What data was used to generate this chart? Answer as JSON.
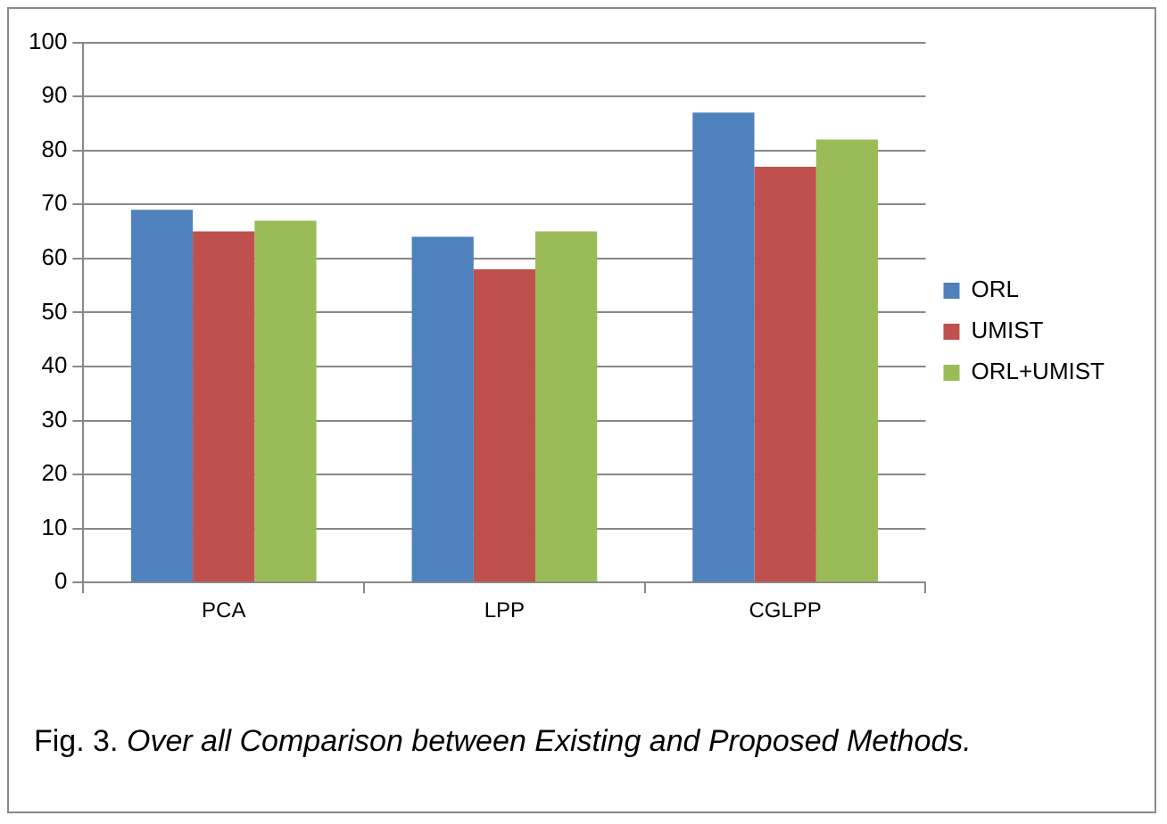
{
  "chart_data": {
    "type": "bar",
    "categories": [
      "PCA",
      "LPP",
      "CGLPP"
    ],
    "series": [
      {
        "name": "ORL",
        "color": "#4f81bd",
        "values": [
          69,
          64,
          87
        ]
      },
      {
        "name": "UMIST",
        "color": "#c0504d",
        "values": [
          65,
          58,
          77
        ]
      },
      {
        "name": "ORL+UMIST",
        "color": "#9bbb59",
        "values": [
          67,
          65,
          82
        ]
      }
    ],
    "ylim": [
      0,
      100
    ],
    "yticks": [
      0,
      10,
      20,
      30,
      40,
      50,
      60,
      70,
      80,
      90,
      100
    ],
    "grid": "y",
    "legend": "right",
    "annotations": [
      "Fig. 3.",
      "Over all Comparison between Existing and Proposed Methods."
    ]
  }
}
